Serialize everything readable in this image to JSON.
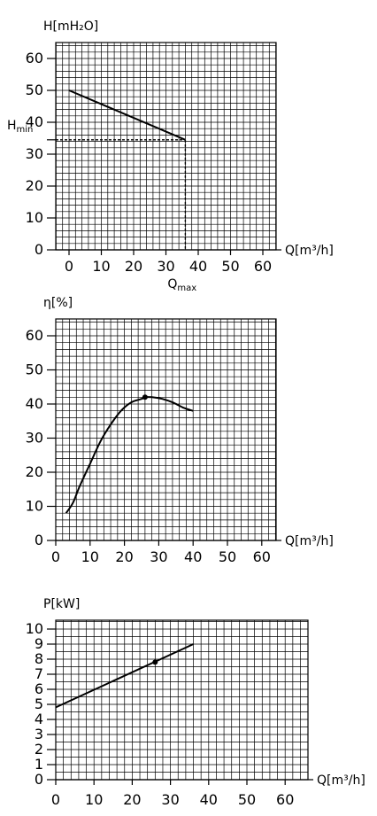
{
  "chart_data": [
    {
      "type": "line",
      "ylabel": "H[mH₂O]",
      "xlabel": "Q[m³/h]",
      "xticks": [
        "0",
        "10",
        "20",
        "30",
        "40",
        "50",
        "60"
      ],
      "yticks": [
        "0",
        "10",
        "20",
        "30",
        "40",
        "50",
        "60"
      ],
      "xlim": [
        0,
        65
      ],
      "ylim": [
        0,
        65
      ],
      "grid": true,
      "series": [
        {
          "x": [
            0,
            36
          ],
          "y": [
            50,
            34.5
          ]
        }
      ],
      "annotations": [
        {
          "text": "Hₘᵢₙ",
          "label": "H",
          "sub": "min",
          "x": 0,
          "y": 34.5
        },
        {
          "text": "Qₘₐₓ",
          "label": "Q",
          "sub": "max",
          "x": 36,
          "y": 0
        }
      ]
    },
    {
      "type": "line",
      "ylabel": "η[%]",
      "xlabel": "Q[m³/h]",
      "xticks": [
        "0",
        "10",
        "20",
        "30",
        "40",
        "50",
        "60"
      ],
      "yticks": [
        "0",
        "10",
        "20",
        "30",
        "40",
        "50",
        "60"
      ],
      "xlim": [
        0,
        65
      ],
      "ylim": [
        0,
        65
      ],
      "grid": true,
      "series": [
        {
          "x": [
            3,
            5,
            7,
            10,
            13,
            16,
            19,
            22,
            25,
            26,
            28,
            31,
            34,
            37,
            40
          ],
          "y": [
            8,
            11,
            16,
            22.5,
            29,
            34,
            38,
            40.5,
            41.5,
            42,
            42,
            41.5,
            40.5,
            39,
            38
          ]
        }
      ],
      "markers": [
        {
          "x": 26,
          "y": 42
        }
      ]
    },
    {
      "type": "line",
      "ylabel": "P[kW]",
      "xlabel": "Q[m³/h]",
      "xticks": [
        "0",
        "10",
        "20",
        "30",
        "40",
        "50",
        "60"
      ],
      "yticks": [
        "0",
        "1",
        "2",
        "3",
        "4",
        "5",
        "6",
        "7",
        "8",
        "9",
        "10"
      ],
      "xlim": [
        0,
        65
      ],
      "ylim": [
        0,
        10.5
      ],
      "grid": true,
      "series": [
        {
          "x": [
            0,
            36
          ],
          "y": [
            4.8,
            9
          ]
        }
      ],
      "markers": [
        {
          "x": 26,
          "y": 7.8
        }
      ]
    }
  ]
}
